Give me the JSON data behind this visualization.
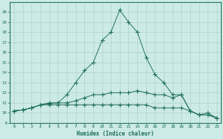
{
  "xlabel": "Humidex (Indice chaleur)",
  "x": [
    0,
    1,
    2,
    3,
    4,
    5,
    6,
    7,
    8,
    9,
    10,
    11,
    12,
    13,
    14,
    15,
    16,
    17,
    18,
    19,
    20,
    21,
    22,
    23
  ],
  "line1": [
    10.2,
    10.3,
    10.5,
    10.8,
    11.0,
    11.0,
    11.8,
    13.0,
    14.2,
    15.0,
    17.2,
    18.0,
    20.2,
    19.0,
    18.0,
    15.5,
    13.8,
    13.0,
    11.8,
    11.8,
    10.2,
    9.8,
    10.0,
    9.5
  ],
  "line2": [
    10.2,
    10.3,
    10.5,
    10.8,
    10.9,
    11.0,
    11.0,
    11.2,
    11.5,
    11.8,
    11.8,
    12.0,
    12.0,
    12.0,
    12.2,
    12.0,
    11.8,
    11.8,
    11.5,
    11.8,
    10.2,
    9.8,
    9.8,
    9.5
  ],
  "line3": [
    10.2,
    10.3,
    10.5,
    10.8,
    10.8,
    10.8,
    10.8,
    10.8,
    10.8,
    10.8,
    10.8,
    10.8,
    10.8,
    10.8,
    10.8,
    10.8,
    10.5,
    10.5,
    10.5,
    10.5,
    10.2,
    9.8,
    9.8,
    9.5
  ],
  "line_color": "#1a6b5a",
  "bg_color": "#cceae6",
  "grid_color_major": "#b0d0cc",
  "grid_color_minor": "#d8eeeb",
  "axis_color": "#1a6b5a",
  "ylim": [
    9,
    21
  ],
  "xlim": [
    -0.5,
    23.5
  ],
  "yticks": [
    9,
    10,
    11,
    12,
    13,
    14,
    15,
    16,
    17,
    18,
    19,
    20
  ],
  "xticks": [
    0,
    1,
    2,
    3,
    4,
    5,
    6,
    7,
    8,
    9,
    10,
    11,
    12,
    13,
    14,
    15,
    16,
    17,
    18,
    19,
    20,
    21,
    22,
    23
  ]
}
